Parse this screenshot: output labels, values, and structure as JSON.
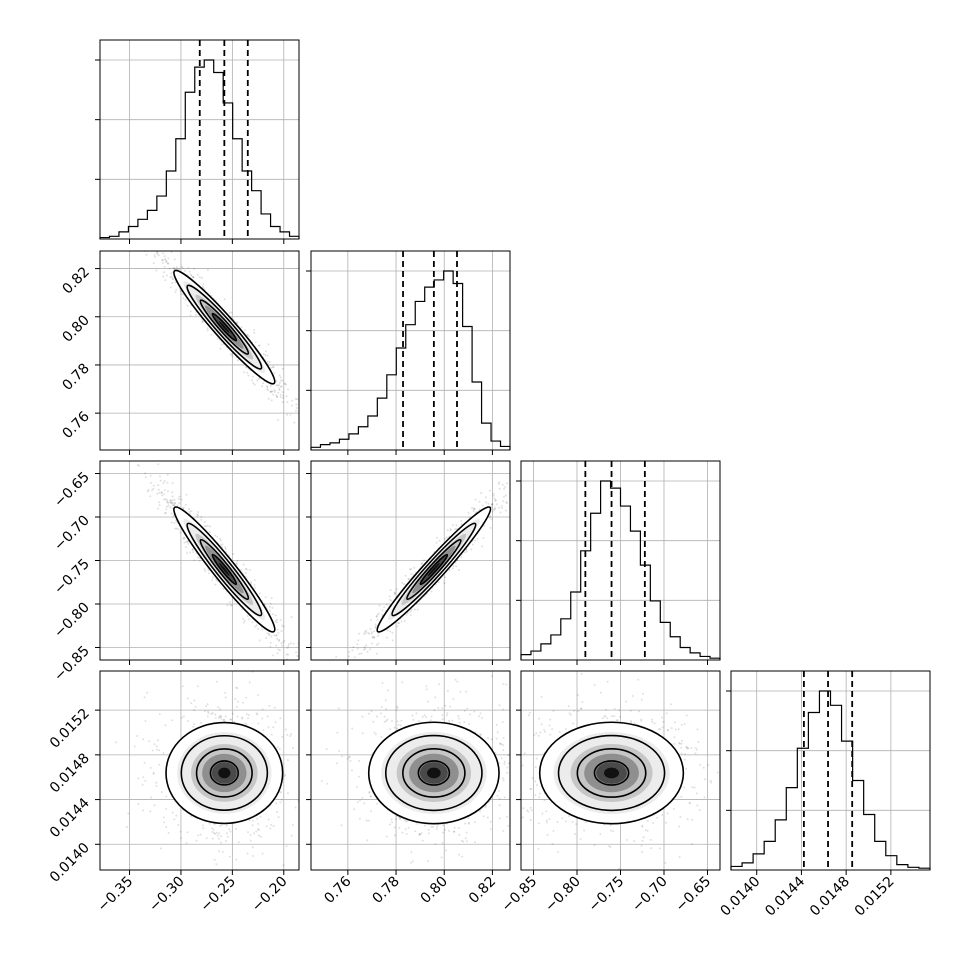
{
  "chart_data": {
    "type": "corner",
    "title": "",
    "params": [
      {
        "tick_values": [
          -0.35,
          -0.3,
          -0.25,
          -0.2
        ],
        "tick_labels": [
          "−0.35",
          "−0.30",
          "−0.25",
          "−0.20"
        ],
        "range": [
          -0.3787,
          -0.1852
        ]
      },
      {
        "tick_values": [
          0.76,
          0.78,
          0.8,
          0.82
        ],
        "tick_labels": [
          "0.76",
          "0.78",
          "0.80",
          "0.82"
        ],
        "range": [
          0.7447,
          0.8273
        ]
      },
      {
        "tick_values": [
          -0.85,
          -0.8,
          -0.75,
          -0.7,
          -0.65
        ],
        "tick_labels": [
          "−0.85",
          "−0.80",
          "−0.75",
          "−0.70",
          "−0.65"
        ],
        "range": [
          -0.8644,
          -0.6356
        ]
      },
      {
        "tick_values": [
          0.014,
          0.0144,
          0.0148,
          0.0152
        ],
        "tick_labels": [
          "0.0140",
          "0.0144",
          "0.0148",
          "0.0152"
        ],
        "range": [
          0.01377,
          0.01555
        ]
      }
    ],
    "quantiles": [
      [
        -0.2817,
        -0.2578,
        -0.235
      ],
      [
        0.7829,
        0.7957,
        0.8053
      ],
      [
        -0.7904,
        -0.7603,
        -0.722
      ],
      [
        0.014422,
        0.014638,
        0.014854
      ]
    ],
    "histograms": [
      [
        0.008,
        0.015,
        0.04,
        0.07,
        0.11,
        0.16,
        0.24,
        0.38,
        0.56,
        0.82,
        0.96,
        1.0,
        0.93,
        0.76,
        0.56,
        0.38,
        0.27,
        0.14,
        0.07,
        0.04,
        0.015
      ],
      [
        0.015,
        0.03,
        0.04,
        0.06,
        0.09,
        0.13,
        0.19,
        0.29,
        0.42,
        0.57,
        0.7,
        0.83,
        0.91,
        0.95,
        1.0,
        0.93,
        0.69,
        0.38,
        0.15,
        0.05,
        0.02
      ],
      [
        0.03,
        0.05,
        0.09,
        0.14,
        0.23,
        0.38,
        0.61,
        0.82,
        1.0,
        0.96,
        0.86,
        0.72,
        0.53,
        0.33,
        0.21,
        0.13,
        0.07,
        0.04,
        0.02,
        0.01
      ],
      [
        0.02,
        0.04,
        0.09,
        0.16,
        0.28,
        0.46,
        0.68,
        0.88,
        1.0,
        0.92,
        0.72,
        0.5,
        0.31,
        0.16,
        0.08,
        0.03,
        0.015,
        0.01
      ]
    ],
    "correlations": [
      [
        1,
        -0.96,
        -0.96,
        0.0
      ],
      [
        -0.96,
        1,
        0.97,
        0.0
      ],
      [
        -0.96,
        0.97,
        1,
        0.0
      ],
      [
        0.0,
        0.0,
        0.0,
        1
      ]
    ],
    "grid": true,
    "legend": "none"
  }
}
